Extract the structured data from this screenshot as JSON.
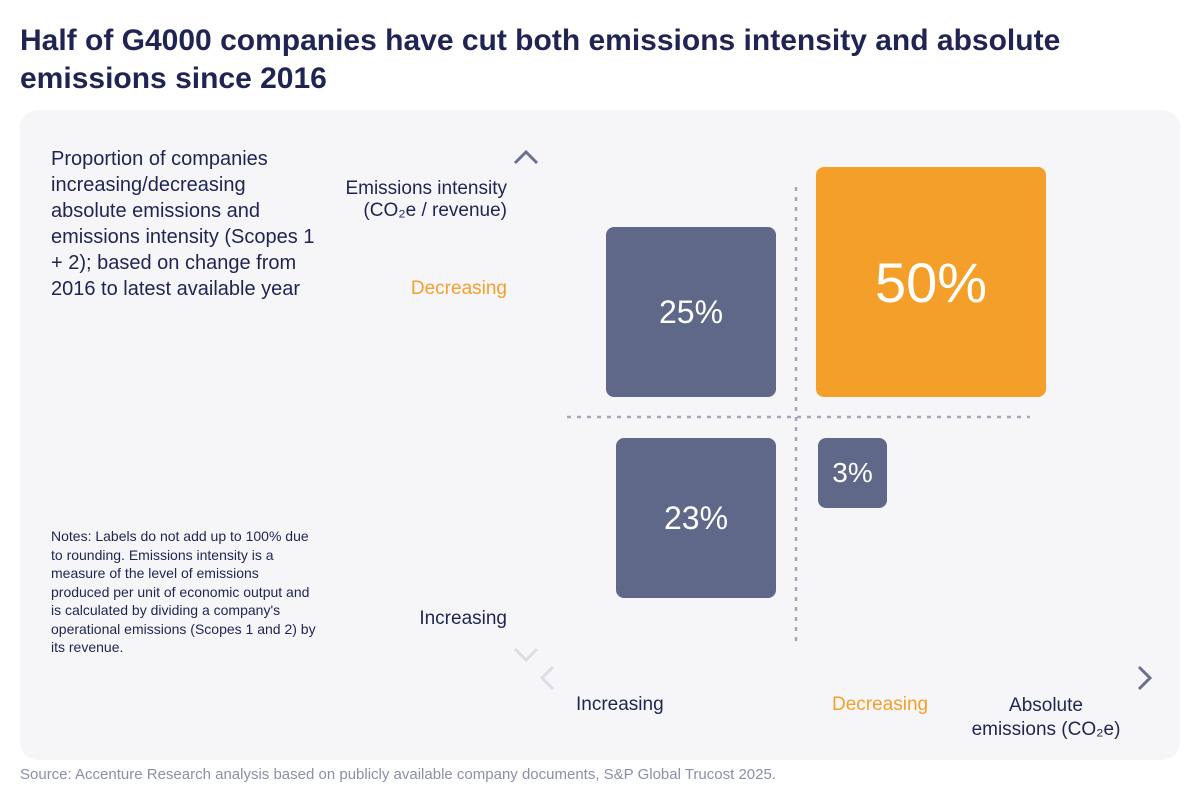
{
  "title": "Half of G4000 companies have cut both emissions intensity and absolute emissions since 2016",
  "subtitle": "Proportion of companies increasing/decreasing absolute emissions and emissions intensity (Scopes 1 + 2); based on change from 2016 to latest available year",
  "notes": "Notes: Labels do not add up to 100% due to rounding. Emissions intensity is a measure of the level of emissions produced per unit of economic output and is calculated by dividing a company's operational emissions (Scopes 1 and 2) by its revenue.",
  "y_axis": {
    "label_line1": "Emissions intensity",
    "label_line2": "(CO₂e / revenue)",
    "decreasing": "Decreasing",
    "increasing": "Increasing"
  },
  "x_axis": {
    "increasing": "Increasing",
    "decreasing": "Decreasing",
    "label_line1": "Absolute",
    "label_line2": "emissions (CO₂e)"
  },
  "quadrants": {
    "intensity_down_absolute_up": "25%",
    "intensity_down_absolute_down": "50%",
    "intensity_up_absolute_up": "23%",
    "intensity_up_absolute_down": "3%"
  },
  "colors": {
    "highlight": "#f59f2b",
    "box": "#5f6889",
    "text": "#1f2452",
    "panel": "#f6f6f9"
  },
  "source": "Source: Accenture Research analysis based on publicly available company documents, S&P Global Trucost 2025."
}
